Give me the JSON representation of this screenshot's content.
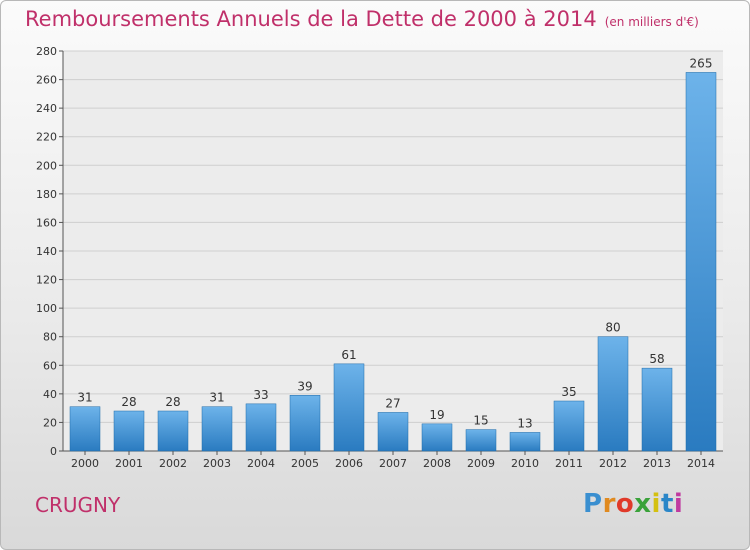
{
  "header": {
    "title": "Remboursements Annuels de la Dette de 2000 à 2014",
    "unit": "(en milliers d'€)"
  },
  "footer": {
    "place": "CRUGNY",
    "logo": "Proxiti"
  },
  "colors": {
    "title": "#c0306a",
    "bar_top": "#6db3ea",
    "bar_bottom": "#2a7bc0",
    "logo_letters": [
      "#3a8fd0",
      "#e08a20",
      "#e03a2a",
      "#3aa23a",
      "#d4c010",
      "#2a86c8",
      "#c03aa0"
    ]
  },
  "chart_data": {
    "type": "bar",
    "categories": [
      "2000",
      "2001",
      "2002",
      "2003",
      "2004",
      "2005",
      "2006",
      "2007",
      "2008",
      "2009",
      "2010",
      "2011",
      "2012",
      "2013",
      "2014"
    ],
    "values": [
      31,
      28,
      28,
      31,
      33,
      39,
      61,
      27,
      19,
      15,
      13,
      35,
      80,
      58,
      265
    ],
    "ylim": [
      0,
      280
    ],
    "yticks": [
      0,
      20,
      40,
      60,
      80,
      100,
      120,
      140,
      160,
      180,
      200,
      220,
      240,
      260,
      280
    ],
    "grid": true,
    "data_labels": true
  }
}
